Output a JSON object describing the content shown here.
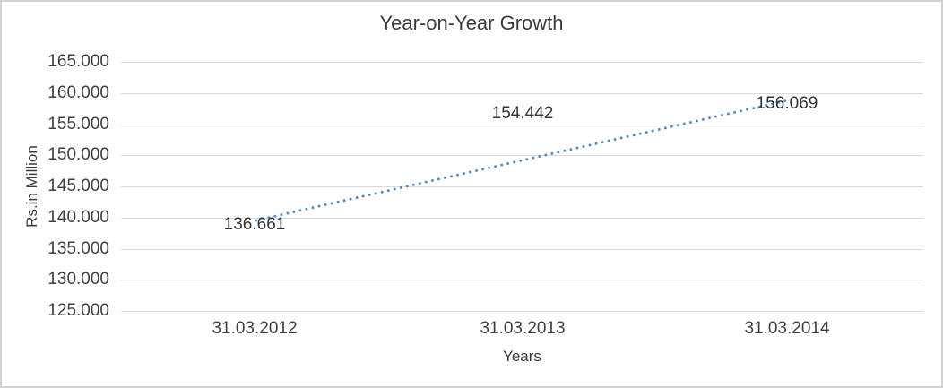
{
  "frame": {
    "border_color": "#d2d2d2",
    "background": "#ffffff"
  },
  "chart_data": {
    "type": "bar",
    "title": "Year-on-Year Growth",
    "xlabel": "Years",
    "ylabel": "Rs.in Million",
    "categories": [
      "31.03.2012",
      "31.03.2013",
      "31.03.2014"
    ],
    "values": [
      136.661,
      154.442,
      156.069
    ],
    "value_labels": [
      "136.661",
      "154.442",
      "156.069"
    ],
    "ylim": [
      125,
      165
    ],
    "y_tick_step": 5,
    "y_tick_labels": [
      "165.000",
      "160.000",
      "155.000",
      "150.000",
      "145.000",
      "140.000",
      "135.000",
      "130.000",
      "125.000"
    ],
    "grid": true,
    "legend": "none",
    "bar_color": "#032260",
    "gridline_color": "#d9d9d9",
    "trendline": {
      "style": "dotted",
      "color": "#4a86c8",
      "start_value": 139.5,
      "end_value": 158.9
    }
  }
}
